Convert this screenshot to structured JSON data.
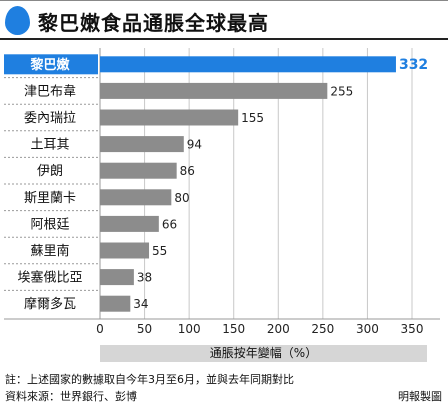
{
  "header": {
    "title": "黎巴嫩食品通脹全球最高"
  },
  "colors": {
    "accent": "#1f7fe0",
    "bar": "#8c8c8c",
    "label_highlight_bg": "#1f7fe0"
  },
  "chart_data": {
    "type": "bar",
    "orientation": "horizontal",
    "categories": [
      "黎巴嫩",
      "津巴布韋",
      "委內瑞拉",
      "土耳其",
      "伊朗",
      "斯里蘭卡",
      "阿根廷",
      "蘇里南",
      "埃塞俄比亞",
      "摩爾多瓦"
    ],
    "values": [
      332,
      255,
      155,
      94,
      86,
      80,
      66,
      55,
      38,
      34
    ],
    "highlight_category": "黎巴嫩",
    "xlabel": "通脹按年變幅（%）",
    "xlim": [
      0,
      350
    ],
    "xticks": [
      0,
      50,
      100,
      150,
      200,
      250,
      300,
      350
    ],
    "grid": true
  },
  "footer": {
    "note": "註：上述國家的數據取自今年3月至6月，並與去年同期對比",
    "source": "資料來源：世界銀行、彭博",
    "credit": "明報製圖"
  }
}
